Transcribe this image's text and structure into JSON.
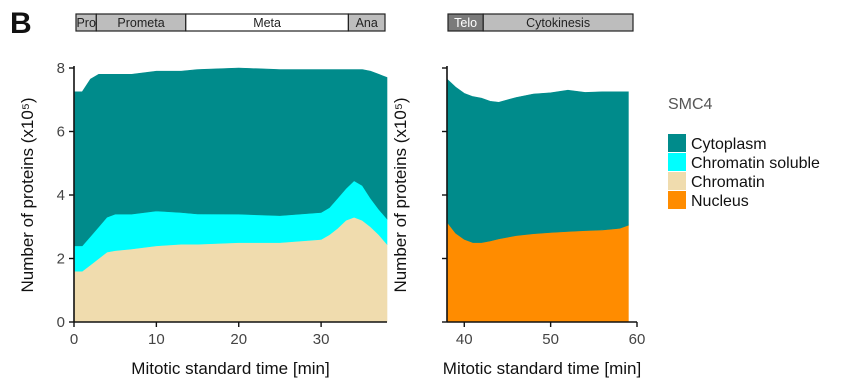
{
  "panel_letter": "B",
  "chart_data": [
    {
      "type": "area",
      "stacked": true,
      "xlabel": "Mitotic standard time [min]",
      "ylabel": "Number of proteins (x10⁵)",
      "xlim": [
        0,
        38
      ],
      "ylim": [
        0,
        8
      ],
      "xticks": [
        0,
        10,
        20,
        30
      ],
      "yticks": [
        0,
        2,
        4,
        6,
        8
      ],
      "grid": false,
      "phases": [
        {
          "label": "Pro",
          "start": 0,
          "end": 2.5,
          "fill": "#bdbdbd",
          "text_color": "#222222"
        },
        {
          "label": "Prometa",
          "start": 2.5,
          "end": 13.5,
          "fill": "#bdbdbd",
          "text_color": "#222222"
        },
        {
          "label": "Meta",
          "start": 13.5,
          "end": 33.5,
          "fill": "#ffffff",
          "text_color": "#222222"
        },
        {
          "label": "Ana",
          "start": 33.5,
          "end": 38,
          "fill": "#bdbdbd",
          "text_color": "#222222"
        }
      ],
      "x": [
        0,
        1,
        2,
        3,
        4,
        5,
        7,
        10,
        13,
        15,
        20,
        25,
        30,
        31,
        32,
        33,
        34,
        35,
        36,
        37,
        38
      ],
      "series": [
        {
          "name": "Chromatin",
          "color": "#f0dcae",
          "values": [
            1.6,
            1.6,
            1.8,
            2.0,
            2.2,
            2.25,
            2.3,
            2.4,
            2.45,
            2.45,
            2.5,
            2.5,
            2.6,
            2.75,
            2.95,
            3.2,
            3.3,
            3.2,
            3.0,
            2.75,
            2.45
          ]
        },
        {
          "name": "Chromatin soluble",
          "color": "#00ffff",
          "values": [
            0.8,
            0.8,
            0.9,
            1.0,
            1.1,
            1.15,
            1.1,
            1.1,
            1.0,
            0.95,
            0.9,
            0.85,
            0.85,
            0.85,
            0.95,
            1.0,
            1.15,
            1.1,
            0.9,
            0.8,
            0.8
          ]
        },
        {
          "name": "Cytoplasm",
          "color": "#008b8b",
          "values": [
            4.85,
            4.85,
            4.95,
            4.8,
            4.5,
            4.4,
            4.4,
            4.4,
            4.45,
            4.55,
            4.6,
            4.6,
            4.5,
            4.35,
            4.05,
            3.75,
            3.5,
            3.65,
            4.0,
            4.25,
            4.45
          ]
        }
      ]
    },
    {
      "type": "area",
      "stacked": true,
      "xlabel": "Mitotic standard time [min]",
      "ylabel": "Number of proteins (x10⁵)",
      "xlim": [
        38,
        60
      ],
      "ylim": [
        0,
        8
      ],
      "xticks": [
        40,
        50,
        60
      ],
      "yticks": [
        0,
        2,
        4,
        6,
        8
      ],
      "grid": false,
      "phases": [
        {
          "label": "Telo",
          "start": 38,
          "end": 42,
          "fill": "#7a7a7a",
          "text_color": "#ffffff"
        },
        {
          "label": "Cytokinesis",
          "start": 42,
          "end": 59,
          "fill": "#bdbdbd",
          "text_color": "#222222"
        }
      ],
      "x": [
        38,
        39,
        40,
        41,
        42,
        43,
        44,
        46,
        48,
        50,
        52,
        54,
        56,
        58,
        59
      ],
      "series": [
        {
          "name": "Nucleus",
          "color": "#ff8c00",
          "values": [
            3.15,
            2.8,
            2.6,
            2.5,
            2.5,
            2.55,
            2.62,
            2.72,
            2.78,
            2.82,
            2.85,
            2.88,
            2.9,
            2.95,
            3.05
          ]
        },
        {
          "name": "Cytoplasm",
          "color": "#008b8b",
          "values": [
            4.5,
            4.6,
            4.6,
            4.6,
            4.55,
            4.4,
            4.3,
            4.35,
            4.4,
            4.4,
            4.45,
            4.35,
            4.35,
            4.3,
            4.2
          ]
        }
      ]
    }
  ],
  "legend": {
    "title": "SMC4",
    "placement": "right",
    "items": [
      {
        "label": "Cytoplasm",
        "color": "#008b8b"
      },
      {
        "label": "Chromatin soluble",
        "color": "#00ffff"
      },
      {
        "label": "Chromatin",
        "color": "#f0dcae"
      },
      {
        "label": "Nucleus",
        "color": "#ff8c00"
      }
    ]
  }
}
